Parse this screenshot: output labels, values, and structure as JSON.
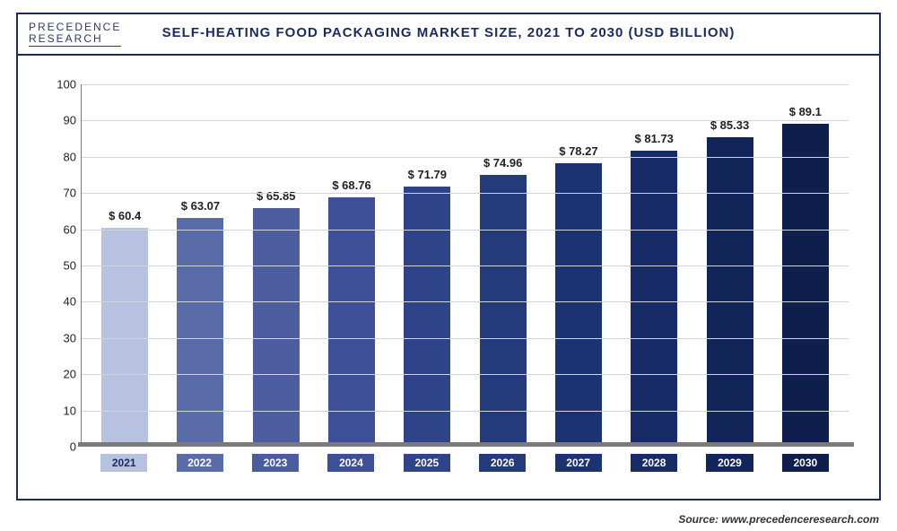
{
  "logo": {
    "line1": "PRECEDENCE",
    "line2": "RESEARCH"
  },
  "title": "SELF-HEATING FOOD PACKAGING MARKET SIZE, 2021 TO 2030 (USD BILLION)",
  "source": "Source: www.precedenceresearch.com",
  "chart": {
    "type": "bar",
    "ylim": [
      0,
      100
    ],
    "ytick_step": 10,
    "background_color": "#ffffff",
    "grid_color": "#d0d4dd",
    "border_color": "#1a2b5c",
    "axis_color": "#7a7a7a",
    "title_fontsize": 15,
    "label_fontsize": 13,
    "bar_width_ratio": 0.72,
    "categories": [
      "2021",
      "2022",
      "2023",
      "2024",
      "2025",
      "2026",
      "2027",
      "2028",
      "2029",
      "2030"
    ],
    "values": [
      60.4,
      63.07,
      65.85,
      68.76,
      71.79,
      74.96,
      78.27,
      81.73,
      85.33,
      89.1
    ],
    "value_labels": [
      "$ 60.4",
      "$ 63.07",
      "$ 65.85",
      "$ 68.76",
      "$ 71.79",
      "$ 74.96",
      "$ 78.27",
      "$ 81.73",
      "$ 85.33",
      "$ 89.1"
    ],
    "bar_colors": [
      "#b7c1e0",
      "#5a6ca8",
      "#4b5d9f",
      "#3d4f96",
      "#2e4388",
      "#233a7b",
      "#1c3372",
      "#172c67",
      "#122558",
      "#0e1f4d"
    ],
    "xlabel_bg_colors": [
      "#b7c1e0",
      "#5a6ca8",
      "#4b5d9f",
      "#3d4f96",
      "#2e4388",
      "#233a7b",
      "#1c3372",
      "#172c67",
      "#122558",
      "#0e1f4d"
    ],
    "xlabel_text_colors": [
      "#1a2b5c",
      "#ffffff",
      "#ffffff",
      "#ffffff",
      "#ffffff",
      "#ffffff",
      "#ffffff",
      "#ffffff",
      "#ffffff",
      "#ffffff"
    ]
  }
}
